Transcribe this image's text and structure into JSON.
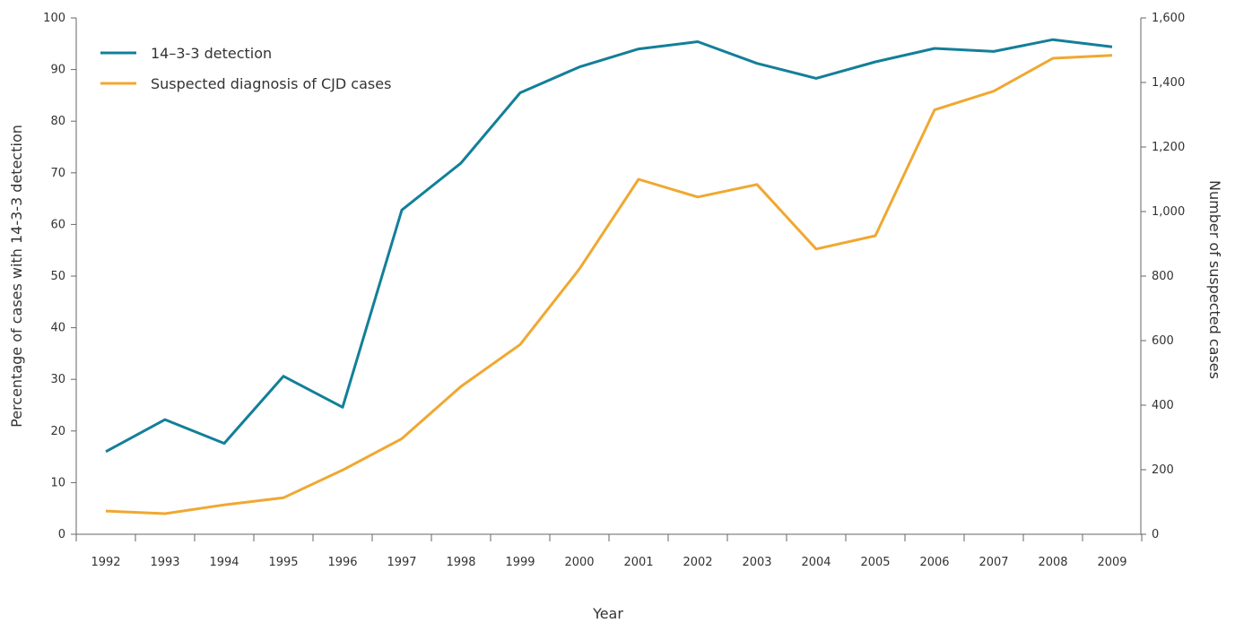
{
  "chart_data": {
    "type": "line",
    "title": "",
    "x": [
      "1992",
      "1993",
      "1994",
      "1995",
      "1996",
      "1997",
      "1998",
      "1999",
      "2000",
      "2001",
      "2002",
      "2003",
      "2004",
      "2005",
      "2006",
      "2007",
      "2008",
      "2009"
    ],
    "xlabel": "Year",
    "ylabel_left": "Percentage of cases with 14-3-3 detection",
    "ylabel_right": "Number of suspected cases",
    "ylim_left": [
      0,
      100
    ],
    "ylim_right": [
      0,
      1600
    ],
    "yticks_left": [
      "0",
      "10",
      "20",
      "30",
      "40",
      "50",
      "60",
      "70",
      "80",
      "90",
      "100"
    ],
    "yticks_right": [
      "0",
      "200",
      "400",
      "600",
      "800",
      "1,000",
      "1,200",
      "1,400",
      "1,600"
    ],
    "grid": false,
    "legend_position": "top-left",
    "series": [
      {
        "name": "14–3-3 detection",
        "axis": "left",
        "color": "#137f99",
        "values": [
          16,
          22.2,
          17.6,
          30.6,
          24.6,
          62.8,
          71.9,
          85.5,
          90.5,
          94,
          95.4,
          91.2,
          88.3,
          91.5,
          94.1,
          93.5,
          95.8,
          94.4
        ]
      },
      {
        "name": "Suspected diagnosis of CJD cases",
        "axis": "right",
        "color": "#f0a830",
        "values": [
          72,
          64,
          91,
          113,
          199,
          296,
          458,
          588,
          822,
          1100,
          1045,
          1084,
          884,
          925,
          1315,
          1373,
          1475,
          1484
        ]
      }
    ]
  }
}
